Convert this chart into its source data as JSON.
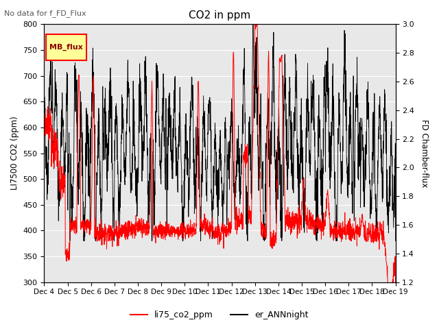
{
  "title": "CO2 in ppm",
  "subtitle": "No data for f_FD_Flux",
  "ylabel_left": "LI7500 CO2 (ppm)",
  "ylabel_right": "FD Chamber-flux",
  "ylim_left": [
    300,
    800
  ],
  "ylim_right": [
    1.2,
    3.0
  ],
  "xtick_labels": [
    "Dec 4",
    "Dec 5",
    "Dec 6",
    "Dec 7",
    "Dec 8",
    "Dec 9",
    "Dec 10",
    "Dec 11",
    "Dec 12",
    "Dec 13",
    "Dec 14",
    "Dec 15",
    "Dec 16",
    "Dec 17",
    "Dec 18",
    "Dec 19"
  ],
  "legend_labels": [
    "li75_co2_ppm",
    "er_ANNnight"
  ],
  "line1_color": "red",
  "line2_color": "black",
  "legend_box_bg": "#FFFF99",
  "legend_box_edge": "red",
  "legend_box_label": "MB_flux",
  "background_color": "#e8e8e8",
  "grid_color": "white",
  "yticks_left": [
    300,
    350,
    400,
    450,
    500,
    550,
    600,
    650,
    700,
    750,
    800
  ],
  "yticks_right": [
    1.2,
    1.4,
    1.6,
    1.8,
    2.0,
    2.2,
    2.4,
    2.6,
    2.8,
    3.0
  ]
}
